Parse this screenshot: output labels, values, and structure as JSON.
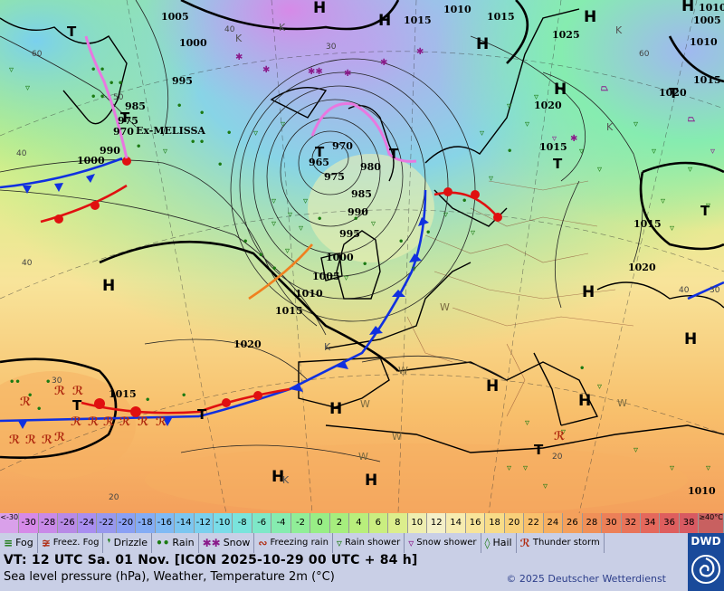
{
  "map": {
    "isobar_labels": [
      "1005",
      "1000",
      "995",
      "985",
      "975",
      "970",
      "990",
      "1000",
      "965",
      "970",
      "975",
      "980",
      "985",
      "990",
      "995",
      "1000",
      "1005",
      "1010",
      "1015",
      "1020",
      "1010",
      "1025",
      "1020",
      "1015",
      "1015",
      "1020",
      "1015",
      "1015",
      "1005",
      "1010",
      "1010",
      "1015",
      "1010",
      "1015",
      "1020"
    ],
    "pressure_centres": {
      "H": [
        "H",
        "H",
        "H",
        "H",
        "H",
        "H",
        "H",
        "H",
        "H",
        "H",
        "H",
        "H",
        "H",
        "H"
      ],
      "T": [
        "T",
        "T",
        "T",
        "T",
        "T",
        "T",
        "T",
        "T",
        "T",
        "T"
      ]
    },
    "storm_name": "Ex-MELISSA",
    "cold_labels": [
      "K",
      "K",
      "K",
      "K",
      "K",
      "K"
    ],
    "warm_labels": [
      "W",
      "W",
      "W",
      "W",
      "W",
      "W"
    ],
    "temp_labels": [
      "50",
      "40",
      "40",
      "60",
      "40",
      "30",
      "30",
      "20",
      "20",
      "30",
      "60",
      "40"
    ]
  },
  "colorbar": {
    "low_end": "<-30",
    "high_end": "≥40°C",
    "values": [
      "-30",
      "-28",
      "-26",
      "-24",
      "-22",
      "-20",
      "-18",
      "-16",
      "-14",
      "-12",
      "-10",
      "-8",
      "-6",
      "-4",
      "-2",
      "0",
      "2",
      "4",
      "6",
      "8",
      "10",
      "12",
      "14",
      "16",
      "18",
      "20",
      "22",
      "24",
      "26",
      "28",
      "30",
      "32",
      "34",
      "36",
      "38"
    ],
    "colors": [
      "#d68ae8",
      "#c98ae8",
      "#b88ae6",
      "#a98ef0",
      "#9898ee",
      "#8aa0f4",
      "#84acf4",
      "#80baf4",
      "#7cc6f0",
      "#7ad0ee",
      "#7adce8",
      "#7ae4dc",
      "#7ee8c8",
      "#86ecb0",
      "#90ee98",
      "#98ee86",
      "#a6ee7e",
      "#b8ee7c",
      "#caee80",
      "#dcee8c",
      "#eeeeb0",
      "#f4f0c8",
      "#f6ecb0",
      "#f8e49a",
      "#f8dc88",
      "#f8d07a",
      "#f8c06c",
      "#f6b062",
      "#f4a05c",
      "#f09058",
      "#ec8058",
      "#e8745a",
      "#e4685c",
      "#de5e5e",
      "#d85a62"
    ]
  },
  "legend": {
    "items": [
      {
        "icon": "fog-icon",
        "glyph": "≡",
        "label": "Fog"
      },
      {
        "icon": "freezing-fog-icon",
        "glyph": "≆",
        "label": "Freez. Fog"
      },
      {
        "icon": "drizzle-icon",
        "glyph": "❜",
        "label": "Drizzle"
      },
      {
        "icon": "rain-icon",
        "glyph": "••",
        "label": "Rain"
      },
      {
        "icon": "snow-icon",
        "glyph": "✱✱",
        "label": "Snow"
      },
      {
        "icon": "freezing-rain-icon",
        "glyph": "∾",
        "label": "Freezing rain"
      },
      {
        "icon": "rain-shower-icon",
        "glyph": "▿",
        "label": "Rain shower"
      },
      {
        "icon": "snow-shower-icon",
        "glyph": "▿",
        "label": "Snow shower"
      },
      {
        "icon": "hail-icon",
        "glyph": "◊",
        "label": "Hail"
      },
      {
        "icon": "thunderstorm-icon",
        "glyph": "ℛ",
        "label": "Thunder storm"
      }
    ]
  },
  "info": {
    "valid_time": "VT: 12 UTC Sa.  01 Nov. [ICON 2025-10-29  00 UTC + 84 h]",
    "description": "Sea level pressure (hPa), Weather, Temperature 2m (°C)",
    "copyright": "© 2025 Deutscher Wetterdienst"
  },
  "logo": {
    "text": "DWD"
  },
  "colors": {
    "panel_bg": "#c9cfe6",
    "logo_bg": "#1a4a9a",
    "cold_front": "#1030e0",
    "warm_front": "#e01010",
    "occluded_front": "#e878e0",
    "trough": "#f08020"
  }
}
